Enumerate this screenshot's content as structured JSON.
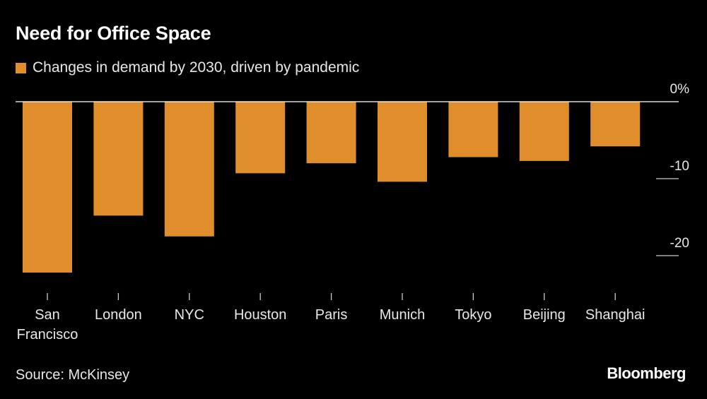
{
  "header": {
    "title": "Need for Office Space",
    "legend_label": "Changes in demand by 2030, driven by pandemic"
  },
  "footer": {
    "source": "Source: McKinsey",
    "brand": "Bloomberg"
  },
  "colors": {
    "bar": "#e08e2b",
    "background": "#000000",
    "text": "#ffffff"
  },
  "chart_data": {
    "type": "bar",
    "title": "Need for Office Space",
    "legend": [
      "Changes in demand by 2030, driven by pandemic"
    ],
    "categories": [
      [
        "San",
        "Francisco"
      ],
      [
        "London"
      ],
      [
        "NYC"
      ],
      [
        "Houston"
      ],
      [
        "Paris"
      ],
      [
        "Munich"
      ],
      [
        "Tokyo"
      ],
      [
        "Beijing"
      ],
      [
        "Shanghai"
      ]
    ],
    "values": [
      -22.2,
      -14.8,
      -17.5,
      -9.3,
      -8.0,
      -10.4,
      -7.2,
      -7.7,
      -5.8
    ],
    "ylim": [
      -24,
      0
    ],
    "yticks": [
      0,
      -10,
      -20
    ],
    "ytick_labels": [
      "0%",
      "-10",
      "-20"
    ],
    "xlabel": "",
    "ylabel": ""
  }
}
